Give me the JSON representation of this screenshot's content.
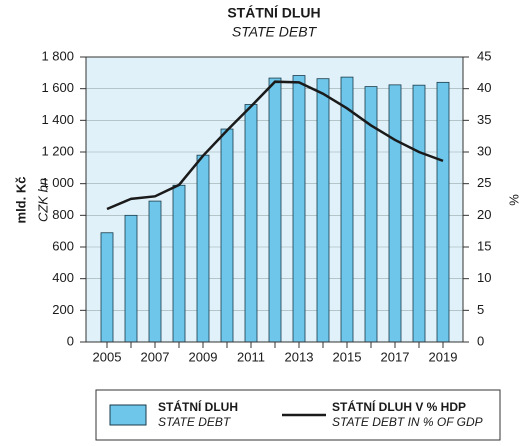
{
  "chart_data": {
    "type": "bar-line",
    "title": "STÁTNÍ DLUH",
    "subtitle": "STATE DEBT",
    "ylabel": "mld. Kč",
    "ylabel_sub": "CZK bn",
    "y2label": "%",
    "categories": [
      "2005",
      null,
      "2007",
      null,
      "2009",
      null,
      "2011",
      null,
      "2013",
      null,
      "2015",
      null,
      "2017",
      null,
      "2019"
    ],
    "series": [
      {
        "name": "STÁTNÍ DLUH",
        "subname": "STATE DEBT",
        "type": "bar",
        "color": "#6ec6ea",
        "values": [
          690,
          800,
          890,
          990,
          1180,
          1345,
          1500,
          1667,
          1683,
          1663,
          1673,
          1613,
          1624,
          1622,
          1640
        ]
      },
      {
        "name": "STÁTNÍ DLUH V % HDP",
        "subname": "STATE DEBT IN % OF GDP",
        "type": "line",
        "color": "#1a1a1a",
        "axis": "y2",
        "values": [
          21.0,
          22.6,
          23.0,
          24.8,
          29.4,
          33.4,
          37.2,
          41.1,
          41.0,
          39.2,
          36.9,
          34.2,
          31.9,
          30.0,
          28.6
        ]
      }
    ],
    "ylim": [
      0,
      1800
    ],
    "yticks": [
      0,
      200,
      400,
      600,
      800,
      {
        "value": 1000,
        "label": "1 000"
      },
      {
        "value": 1200,
        "label": "1 200"
      },
      {
        "value": 1400,
        "label": "1 400"
      },
      {
        "value": 1600,
        "label": "1 600"
      },
      {
        "value": 1800,
        "label": "1 800"
      }
    ],
    "y2lim": [
      0,
      45
    ],
    "y2ticks": [
      0,
      5,
      10,
      15,
      20,
      25,
      30,
      35,
      40,
      45
    ],
    "grid": true,
    "legend": "bottom"
  }
}
